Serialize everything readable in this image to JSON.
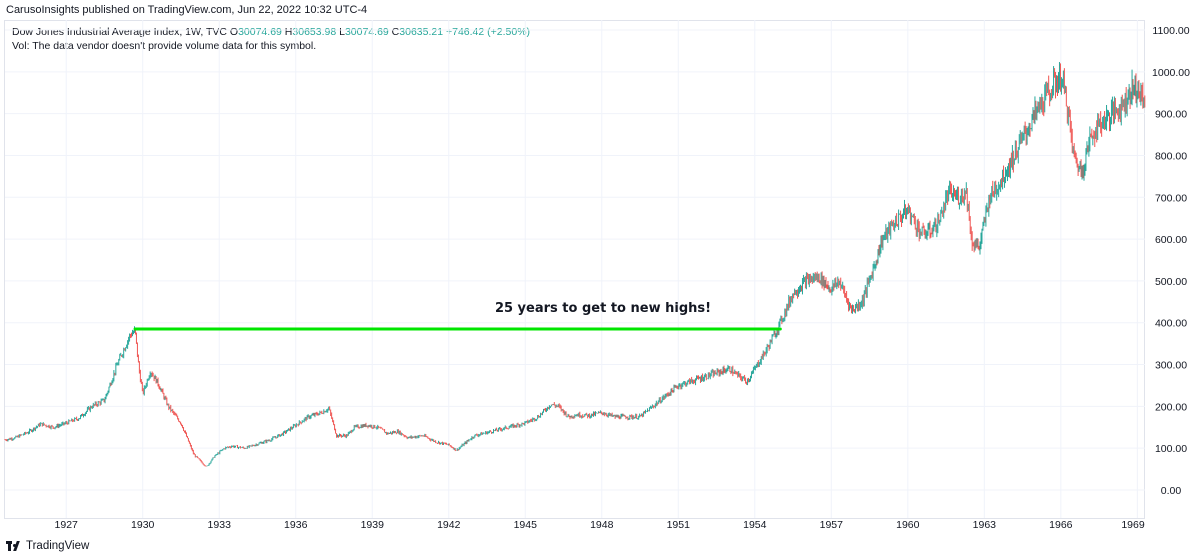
{
  "header": {
    "publisher_line": "CarusoInsights published on TradingView.com, Jun 22, 2022 10:32 UTC-4"
  },
  "legend": {
    "symbol": "Dow Jones Industrial Average Index, 1W, TVC",
    "open_label": "O",
    "open": "30074.69",
    "high_label": "H",
    "high": "30653.98",
    "low_label": "L",
    "low": "30074.69",
    "close_label": "C",
    "close": "30635.21",
    "change": "+746.42 (+2.50%)",
    "volume_note": "Vol: The data vendor doesn't provide volume data for this symbol."
  },
  "footer": {
    "brand": "TradingView"
  },
  "colors": {
    "up": "#26a69a",
    "down": "#ef5350",
    "annotation_line": "#00e600",
    "grid": "#f0f3fa"
  },
  "chart_data": {
    "type": "line",
    "annotation": "25 years to get to new highs!",
    "y_ticks": [
      "1100.00",
      "1000.00",
      "900.00",
      "800.00",
      "700.00",
      "600.00",
      "500.00",
      "400.00",
      "300.00",
      "200.00",
      "100.00",
      "0.00"
    ],
    "x_ticks": [
      "1927",
      "1930",
      "1933",
      "1936",
      "1939",
      "1942",
      "1945",
      "1948",
      "1951",
      "1954",
      "1957",
      "1960",
      "1963",
      "1966",
      "1969"
    ],
    "ylim": [
      -15,
      1115
    ],
    "xlim": [
      1924.6,
      1969.3
    ],
    "resistance_level": 385,
    "resistance_start": 1929.7,
    "resistance_end": 1955.0,
    "series": [
      {
        "x": [
          1924.6,
          1925.0,
          1925.5,
          1926.0,
          1926.5,
          1927.0,
          1927.5,
          1928.0,
          1928.5,
          1929.0,
          1929.5,
          1929.7,
          1929.85,
          1930.0,
          1930.3,
          1930.6,
          1931.0,
          1931.5,
          1932.0,
          1932.5,
          1932.8,
          1933.2,
          1933.5,
          1934.0,
          1934.5,
          1935.0,
          1935.5,
          1936.0,
          1936.5,
          1937.0,
          1937.3,
          1937.6,
          1938.0,
          1938.3,
          1938.8,
          1939.2,
          1939.6,
          1940.0,
          1940.4,
          1941.0,
          1941.5,
          1942.0,
          1942.3,
          1943.0,
          1944.0,
          1945.0,
          1945.5,
          1946.0,
          1946.3,
          1946.7,
          1947.0,
          1947.5,
          1948.0,
          1948.5,
          1949.0,
          1949.5,
          1950.0,
          1950.5,
          1951.0,
          1951.5,
          1952.0,
          1952.5,
          1953.0,
          1953.3,
          1953.7,
          1954.0,
          1954.5,
          1955.0,
          1955.5,
          1956.0,
          1956.5,
          1957.0,
          1957.3,
          1957.8,
          1958.2,
          1958.6,
          1959.0,
          1959.5,
          1960.0,
          1960.5,
          1960.8,
          1961.2,
          1961.6,
          1962.0,
          1962.3,
          1962.5,
          1962.8,
          1963.2,
          1963.6,
          1964.0,
          1964.5,
          1965.0,
          1965.5,
          1966.0,
          1966.2,
          1966.5,
          1966.8,
          1967.2,
          1967.6,
          1968.0,
          1968.4,
          1968.8,
          1969.0,
          1969.3
        ],
        "values": [
          120,
          125,
          138,
          158,
          150,
          160,
          172,
          200,
          215,
          300,
          370,
          381,
          290,
          230,
          285,
          255,
          200,
          160,
          85,
          55,
          80,
          100,
          105,
          100,
          110,
          120,
          135,
          155,
          175,
          185,
          195,
          130,
          130,
          150,
          155,
          150,
          135,
          140,
          125,
          130,
          115,
          108,
          95,
          130,
          145,
          160,
          175,
          205,
          200,
          175,
          180,
          178,
          185,
          175,
          175,
          175,
          200,
          225,
          250,
          260,
          270,
          280,
          290,
          275,
          260,
          290,
          340,
          400,
          470,
          500,
          510,
          480,
          500,
          430,
          450,
          520,
          600,
          640,
          670,
          615,
          615,
          640,
          710,
          700,
          715,
          595,
          580,
          700,
          735,
          780,
          840,
          900,
          950,
          990,
          940,
          800,
          760,
          850,
          880,
          900,
          920,
          960,
          960,
          920
        ]
      }
    ]
  }
}
